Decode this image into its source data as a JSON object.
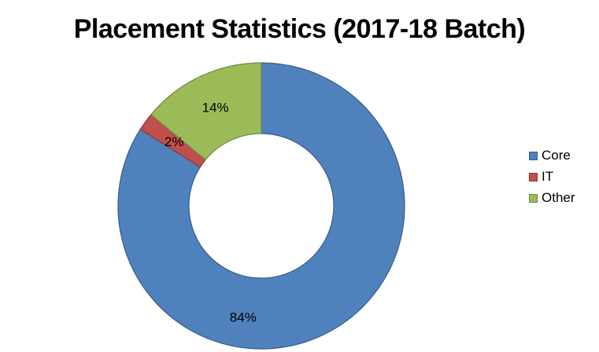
{
  "chart_data": {
    "type": "pie",
    "variant": "donut",
    "title": "Placement Statistics (2017-18 Batch)",
    "categories": [
      "Core",
      "IT",
      "Other"
    ],
    "values": [
      84,
      2,
      14
    ],
    "data_labels": [
      "84%",
      "2%",
      "14%"
    ],
    "colors": [
      "#4f81bd",
      "#c0504d",
      "#9bbb59"
    ],
    "stroke_colors": [
      "#385d8a",
      "#8c3836",
      "#71893f"
    ],
    "legend": {
      "placement": "right",
      "items": [
        {
          "label": "Core",
          "color": "#4f81bd"
        },
        {
          "label": "IT",
          "color": "#c0504d"
        },
        {
          "label": "Other",
          "color": "#9bbb59"
        }
      ]
    }
  }
}
